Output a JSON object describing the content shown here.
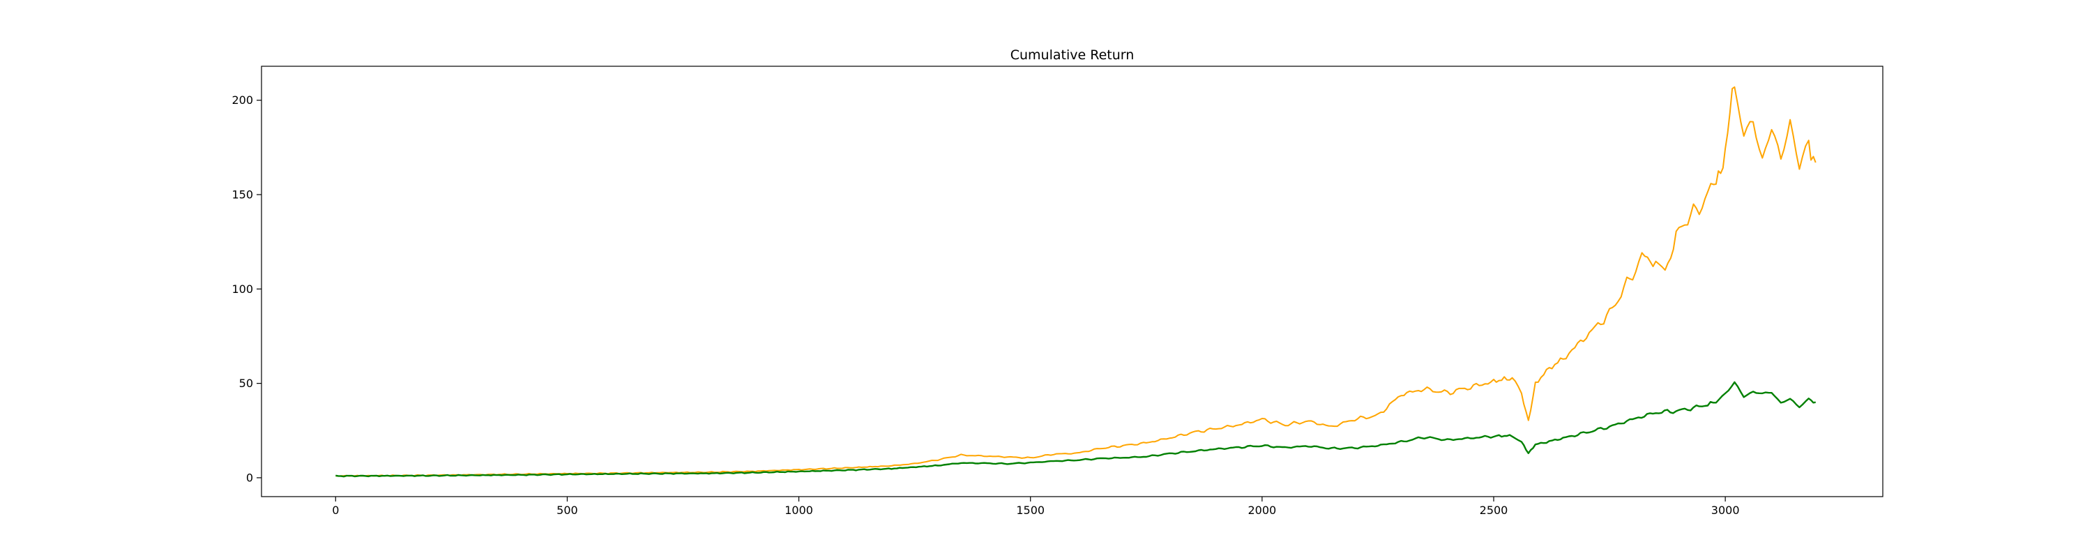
{
  "chart_data": {
    "type": "line",
    "title": "Cumulative Return",
    "xlabel": "",
    "ylabel": "",
    "xlim": [
      -160,
      3340
    ],
    "ylim": [
      -10,
      218
    ],
    "x_ticks": [
      0,
      500,
      1000,
      1500,
      2000,
      2500,
      3000
    ],
    "y_ticks": [
      0,
      50,
      100,
      150,
      200
    ],
    "grid": false,
    "legend": "none",
    "series": [
      {
        "color": "#ffa500",
        "points": [
          [
            0,
            1
          ],
          [
            100,
            1.1
          ],
          [
            200,
            1.3
          ],
          [
            300,
            1.6
          ],
          [
            400,
            1.9
          ],
          [
            500,
            2.2
          ],
          [
            600,
            2.4
          ],
          [
            700,
            2.7
          ],
          [
            800,
            2.9
          ],
          [
            900,
            3.4
          ],
          [
            1000,
            4.3
          ],
          [
            1100,
            5.2
          ],
          [
            1200,
            6.3
          ],
          [
            1250,
            7.5
          ],
          [
            1300,
            9.5
          ],
          [
            1350,
            12
          ],
          [
            1400,
            11.5
          ],
          [
            1450,
            11
          ],
          [
            1500,
            10.5
          ],
          [
            1550,
            12.5
          ],
          [
            1600,
            13
          ],
          [
            1650,
            15.5
          ],
          [
            1700,
            17
          ],
          [
            1750,
            18.5
          ],
          [
            1800,
            21
          ],
          [
            1850,
            24
          ],
          [
            1900,
            26
          ],
          [
            1950,
            28
          ],
          [
            2000,
            31
          ],
          [
            2050,
            28
          ],
          [
            2100,
            30
          ],
          [
            2150,
            27
          ],
          [
            2200,
            31
          ],
          [
            2250,
            33
          ],
          [
            2300,
            44
          ],
          [
            2350,
            47
          ],
          [
            2400,
            45
          ],
          [
            2450,
            48
          ],
          [
            2500,
            51
          ],
          [
            2540,
            53
          ],
          [
            2560,
            44
          ],
          [
            2575,
            30
          ],
          [
            2590,
            50
          ],
          [
            2620,
            58
          ],
          [
            2650,
            63
          ],
          [
            2700,
            75
          ],
          [
            2750,
            87
          ],
          [
            2800,
            108
          ],
          [
            2820,
            118
          ],
          [
            2850,
            113
          ],
          [
            2870,
            109
          ],
          [
            2900,
            132
          ],
          [
            2950,
            145
          ],
          [
            2975,
            155
          ],
          [
            2990,
            162
          ],
          [
            3000,
            172
          ],
          [
            3010,
            195
          ],
          [
            3020,
            208
          ],
          [
            3040,
            182
          ],
          [
            3060,
            187
          ],
          [
            3080,
            170
          ],
          [
            3100,
            185
          ],
          [
            3120,
            168
          ],
          [
            3140,
            190
          ],
          [
            3160,
            164
          ],
          [
            3180,
            178
          ],
          [
            3195,
            167
          ]
        ]
      },
      {
        "color": "#008000",
        "points": [
          [
            0,
            0.9
          ],
          [
            100,
            1
          ],
          [
            200,
            1.1
          ],
          [
            300,
            1.3
          ],
          [
            400,
            1.5
          ],
          [
            500,
            1.8
          ],
          [
            600,
            2
          ],
          [
            700,
            2.2
          ],
          [
            800,
            2.3
          ],
          [
            900,
            2.7
          ],
          [
            1000,
            3.3
          ],
          [
            1100,
            4
          ],
          [
            1200,
            4.8
          ],
          [
            1300,
            6.5
          ],
          [
            1350,
            7.8
          ],
          [
            1400,
            7.7
          ],
          [
            1450,
            7.4
          ],
          [
            1500,
            8
          ],
          [
            1550,
            8.8
          ],
          [
            1600,
            9.3
          ],
          [
            1650,
            10.2
          ],
          [
            1700,
            10.6
          ],
          [
            1750,
            11.2
          ],
          [
            1800,
            12.8
          ],
          [
            1850,
            14
          ],
          [
            1900,
            15.2
          ],
          [
            1950,
            16.1
          ],
          [
            2000,
            17
          ],
          [
            2050,
            16
          ],
          [
            2100,
            16.8
          ],
          [
            2150,
            15.5
          ],
          [
            2200,
            15.8
          ],
          [
            2250,
            17
          ],
          [
            2300,
            19
          ],
          [
            2350,
            21.5
          ],
          [
            2400,
            20
          ],
          [
            2450,
            21
          ],
          [
            2500,
            22
          ],
          [
            2540,
            22.3
          ],
          [
            2560,
            19
          ],
          [
            2575,
            13
          ],
          [
            2590,
            17.5
          ],
          [
            2650,
            21
          ],
          [
            2700,
            24
          ],
          [
            2750,
            27
          ],
          [
            2800,
            31
          ],
          [
            2850,
            34.5
          ],
          [
            2900,
            35.5
          ],
          [
            2950,
            38
          ],
          [
            2980,
            40
          ],
          [
            3000,
            45
          ],
          [
            3020,
            50
          ],
          [
            3040,
            43
          ],
          [
            3060,
            46
          ],
          [
            3080,
            44
          ],
          [
            3100,
            45.5
          ],
          [
            3120,
            40
          ],
          [
            3140,
            41
          ],
          [
            3160,
            38
          ],
          [
            3180,
            42
          ],
          [
            3195,
            40
          ]
        ]
      }
    ]
  }
}
